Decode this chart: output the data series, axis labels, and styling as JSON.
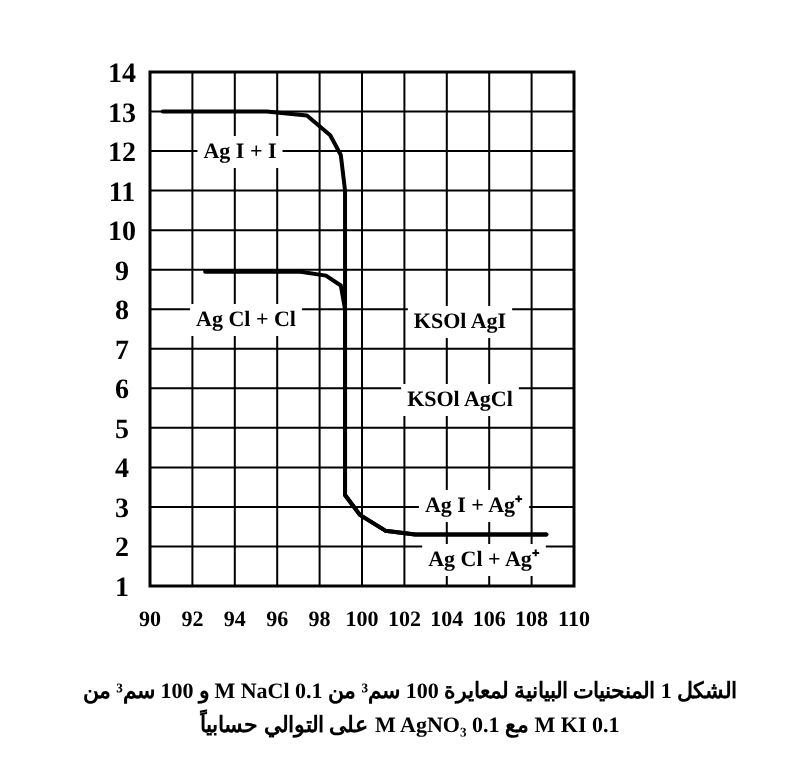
{
  "chart_data": {
    "type": "line",
    "series": [
      {
        "color": "#000000",
        "x": [
          90.6,
          95.5,
          97.4,
          98.5,
          99.0,
          99.2,
          99.2,
          99.9,
          101.1,
          102.5,
          108.7
        ],
        "values": [
          13.0,
          13.0,
          12.9,
          12.4,
          11.9,
          11.0,
          3.3,
          2.8,
          2.4,
          2.3,
          2.3
        ]
      },
      {
        "color": "#000000",
        "x": [
          92.6,
          97.1,
          98.3,
          99.0,
          99.2,
          99.2,
          99.9,
          101.1,
          102.5,
          108.7
        ],
        "values": [
          8.95,
          8.95,
          8.85,
          8.6,
          8.0,
          3.3,
          2.8,
          2.4,
          2.3,
          2.3
        ]
      }
    ],
    "xlim": [
      90,
      110
    ],
    "ylim": [
      1,
      14
    ],
    "xticks": [
      90,
      92,
      94,
      96,
      98,
      100,
      102,
      104,
      106,
      108,
      110
    ],
    "yticks": [
      1,
      2,
      3,
      4,
      5,
      6,
      7,
      8,
      9,
      10,
      11,
      12,
      13,
      14
    ],
    "grid": true,
    "marker": "none",
    "line_style": "solid",
    "annotations": [
      "Ag I + I",
      "Ag Cl + Cl",
      "KSOl AgI",
      "KSOl AgCl",
      "Ag I + Ag⁺",
      "Ag Cl + Ag⁺",
      "الشكل 1 المنحنيات البيانية لمعايرة 100 سم³ من 0.1 M NaCl و 100 سم³ من 0.1 M KI مع 0.1 M AgNO₃ على التوالي حسابياً"
    ]
  }
}
